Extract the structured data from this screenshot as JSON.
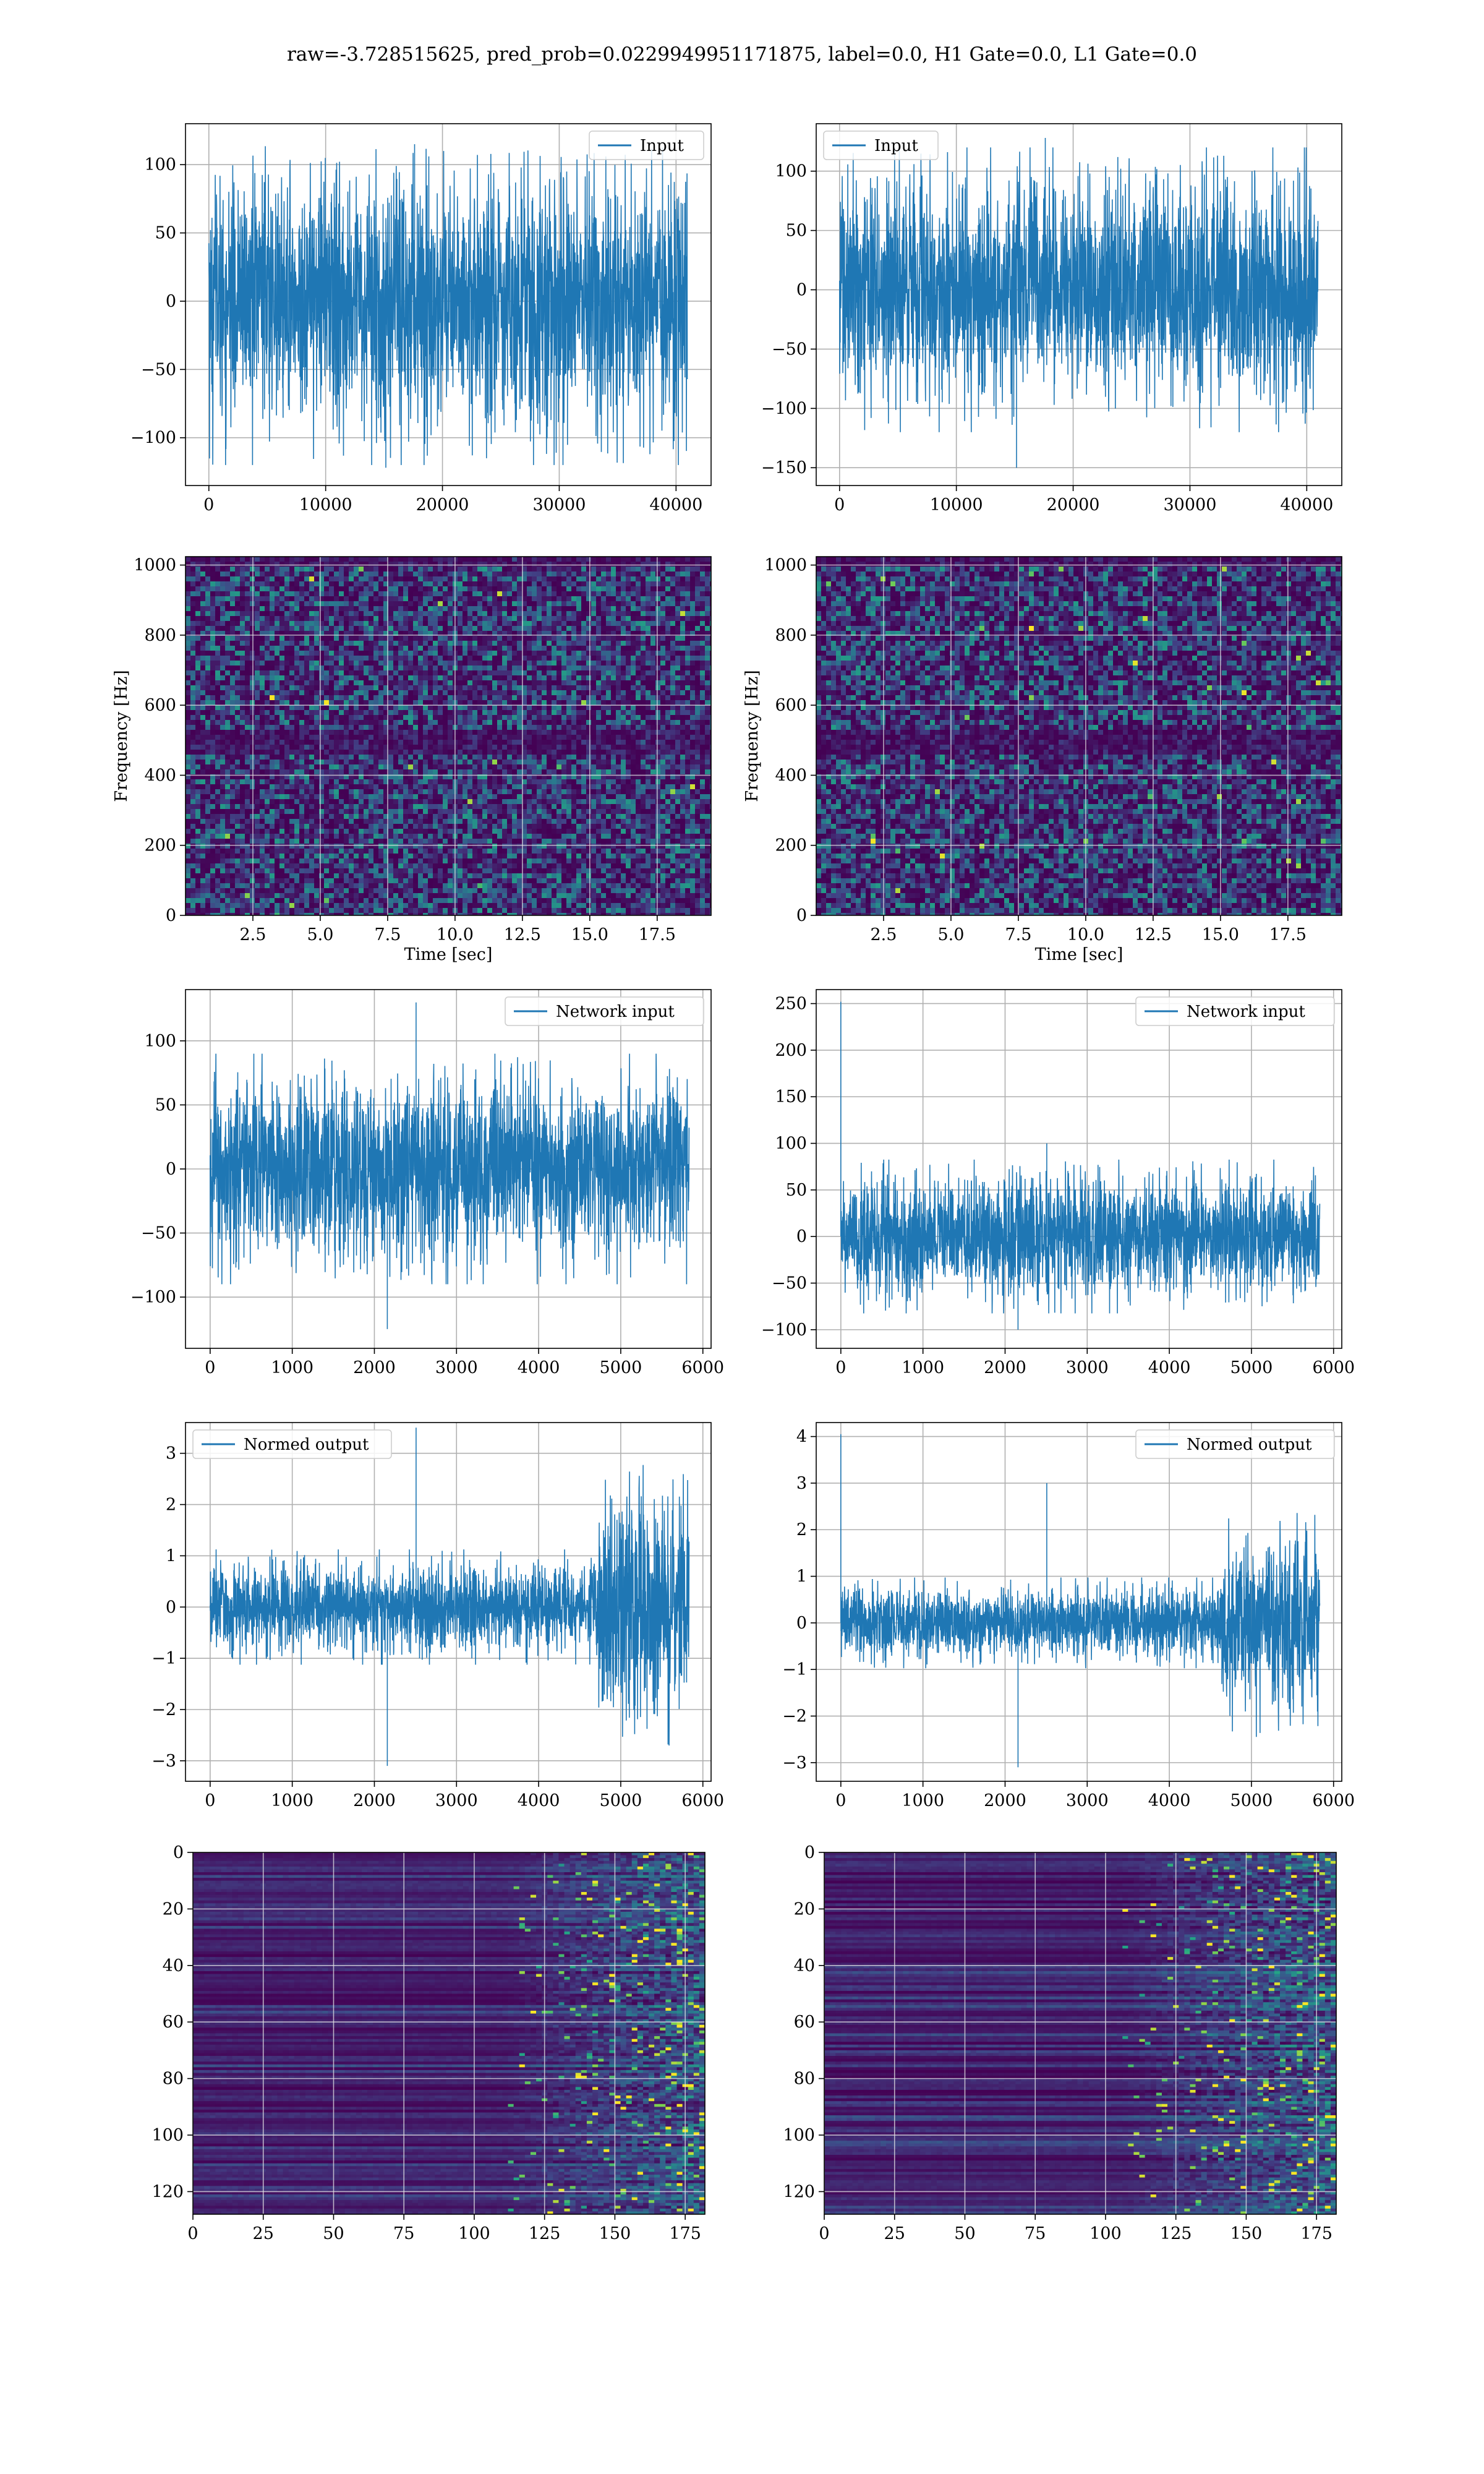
{
  "suptitle": "raw=-3.728515625, pred_prob=0.0229949951171875, label=0.0, H1 Gate=0.0, L1 Gate=0.0",
  "colors": {
    "line": "#1f77b4",
    "grid": "#b0b0b0",
    "viridis_low": "#440154",
    "viridis_mid": "#21918c",
    "viridis_high": "#fde725"
  },
  "chart_data": [
    {
      "id": "input-h1",
      "type": "line",
      "legend": "Input",
      "legend_loc": "upper right",
      "grid": true,
      "xlim": [
        -2000,
        43000
      ],
      "ylim": [
        -135,
        130
      ],
      "xticks": [
        0,
        10000,
        20000,
        30000,
        40000
      ],
      "yticks": [
        -100,
        -50,
        0,
        50,
        100
      ],
      "signal": {
        "x_start": 0,
        "x_end": 40960,
        "envelope": [
          [
            0,
            80
          ],
          [
            40960,
            80
          ]
        ],
        "peaks_max": 115,
        "peaks_min": -122
      }
    },
    {
      "id": "input-l1",
      "type": "line",
      "legend": "Input",
      "legend_loc": "upper left",
      "grid": true,
      "xlim": [
        -2000,
        43000
      ],
      "ylim": [
        -165,
        140
      ],
      "xticks": [
        0,
        10000,
        20000,
        30000,
        40000
      ],
      "yticks": [
        -150,
        -100,
        -50,
        0,
        50,
        100
      ],
      "signal": {
        "x_start": 0,
        "x_end": 40960,
        "envelope": [
          [
            0,
            80
          ],
          [
            40960,
            80
          ]
        ],
        "peaks_max": 128,
        "peaks_min": -150
      }
    },
    {
      "id": "spec-h1",
      "type": "heatmap",
      "grid": true,
      "xlim": [
        0,
        19.5
      ],
      "ylim": [
        0,
        1024
      ],
      "xticks": [
        2.5,
        5.0,
        7.5,
        10.0,
        12.5,
        15.0,
        17.5
      ],
      "yticks": [
        0,
        200,
        400,
        600,
        800,
        1000
      ],
      "xlabel": "Time [sec]",
      "ylabel": "Frequency [Hz]",
      "dark_band_hz": 500,
      "seed": 11
    },
    {
      "id": "spec-l1",
      "type": "heatmap",
      "grid": true,
      "xlim": [
        0,
        19.5
      ],
      "ylim": [
        0,
        1024
      ],
      "xticks": [
        2.5,
        5.0,
        7.5,
        10.0,
        12.5,
        15.0,
        17.5
      ],
      "yticks": [
        0,
        200,
        400,
        600,
        800,
        1000
      ],
      "xlabel": "Time [sec]",
      "ylabel": "Frequency [Hz]",
      "dark_band_hz": 500,
      "seed": 23
    },
    {
      "id": "net-h1",
      "type": "line",
      "legend": "Network input",
      "legend_loc": "upper right",
      "grid": true,
      "xlim": [
        -300,
        6100
      ],
      "ylim": [
        -140,
        140
      ],
      "xticks": [
        0,
        1000,
        2000,
        3000,
        4000,
        5000,
        6000
      ],
      "yticks": [
        -100,
        -50,
        0,
        50,
        100
      ],
      "signal": {
        "x_start": 0,
        "x_end": 5832,
        "envelope": [
          [
            0,
            60
          ],
          [
            5832,
            60
          ]
        ],
        "peaks_max": 130,
        "peaks_min": -125
      }
    },
    {
      "id": "net-l1",
      "type": "line",
      "legend": "Network input",
      "legend_loc": "upper right",
      "grid": true,
      "xlim": [
        -300,
        6100
      ],
      "ylim": [
        -120,
        265
      ],
      "xticks": [
        0,
        1000,
        2000,
        3000,
        4000,
        5000,
        6000
      ],
      "yticks": [
        -100,
        -50,
        0,
        50,
        100,
        150,
        200,
        250
      ],
      "signal": {
        "x_start": 0,
        "x_end": 5832,
        "envelope": [
          [
            0,
            55
          ],
          [
            5832,
            55
          ]
        ],
        "peaks_max": 100,
        "peaks_min": -100,
        "spike_x": 0,
        "spike_y": 252
      }
    },
    {
      "id": "norm-h1",
      "type": "line",
      "legend": "Normed output",
      "legend_loc": "upper left",
      "grid": true,
      "xlim": [
        -300,
        6100
      ],
      "ylim": [
        -3.4,
        3.6
      ],
      "xticks": [
        0,
        1000,
        2000,
        3000,
        4000,
        5000,
        6000
      ],
      "yticks": [
        -3,
        -2,
        -1,
        0,
        1,
        2,
        3
      ],
      "signal": {
        "x_start": 0,
        "x_end": 5832,
        "envelope": [
          [
            0,
            0.75
          ],
          [
            4650,
            0.75
          ],
          [
            4750,
            1.8
          ],
          [
            5832,
            1.9
          ]
        ],
        "peaks_max": 3.5,
        "peaks_min": -3.1
      }
    },
    {
      "id": "norm-l1",
      "type": "line",
      "legend": "Normed output",
      "legend_loc": "upper right",
      "grid": true,
      "xlim": [
        -300,
        6100
      ],
      "ylim": [
        -3.4,
        4.3
      ],
      "xticks": [
        0,
        1000,
        2000,
        3000,
        4000,
        5000,
        6000
      ],
      "yticks": [
        -3,
        -2,
        -1,
        0,
        1,
        2,
        3,
        4
      ],
      "signal": {
        "x_start": 0,
        "x_end": 5832,
        "envelope": [
          [
            0,
            0.65
          ],
          [
            4600,
            0.65
          ],
          [
            4700,
            1.6
          ],
          [
            5832,
            1.7
          ]
        ],
        "peaks_max": 3.0,
        "peaks_min": -3.1,
        "spike_x": 0,
        "spike_y": 4.05
      }
    },
    {
      "id": "feat-h1",
      "type": "heatmap",
      "grid": true,
      "xlim": [
        0,
        182
      ],
      "ylim": [
        128,
        0
      ],
      "xticks": [
        0,
        25,
        50,
        75,
        100,
        125,
        150,
        175
      ],
      "yticks": [
        0,
        20,
        40,
        60,
        80,
        100,
        120
      ],
      "activation_onset": 110,
      "seed": 37
    },
    {
      "id": "feat-l1",
      "type": "heatmap",
      "grid": true,
      "xlim": [
        0,
        182
      ],
      "ylim": [
        128,
        0
      ],
      "xticks": [
        0,
        25,
        50,
        75,
        100,
        125,
        150,
        175
      ],
      "yticks": [
        0,
        20,
        40,
        60,
        80,
        100,
        120
      ],
      "activation_onset": 105,
      "seed": 53
    }
  ]
}
